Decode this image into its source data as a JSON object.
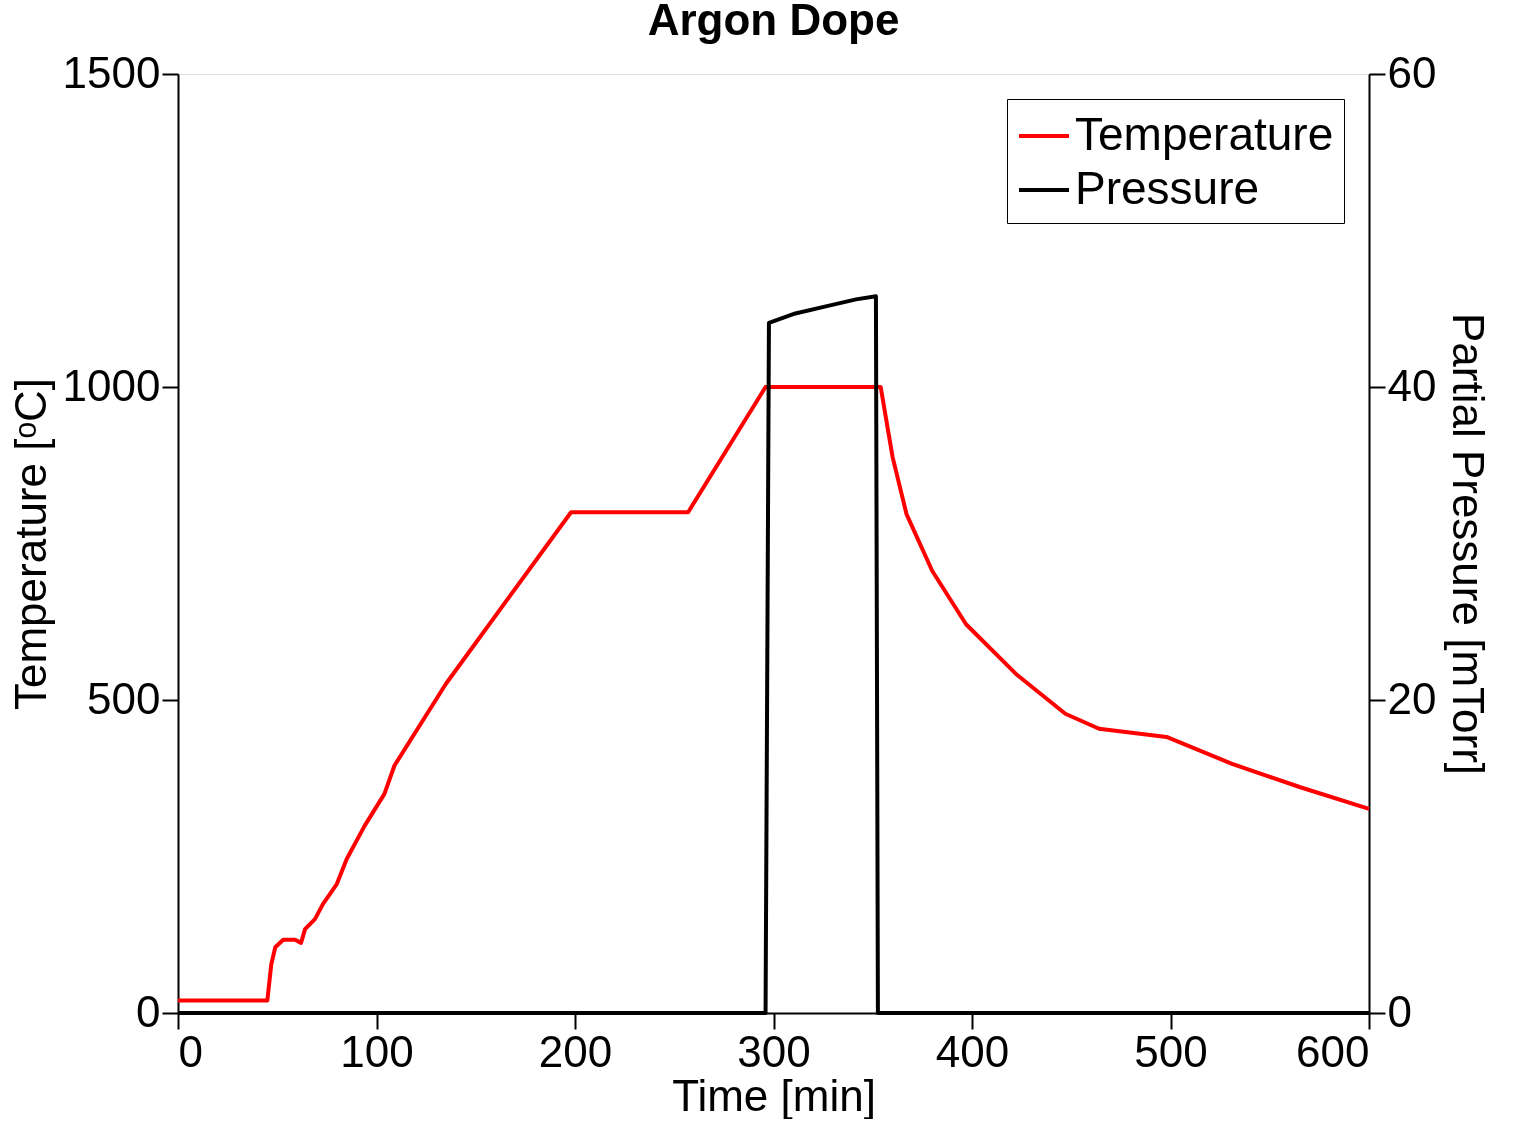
{
  "chart_data": {
    "type": "line",
    "title": "Argon Dope",
    "xlabel": "Time [min]",
    "ylabel": "Temperature [ᵒC]",
    "y2label": "Partial Pressure [mTorr]",
    "xlim": [
      0,
      600
    ],
    "xticks": [
      0,
      100,
      200,
      300,
      400,
      500,
      600
    ],
    "ylim": [
      0,
      1500
    ],
    "yticks": [
      0,
      500,
      1000,
      1500
    ],
    "y2lim": [
      0,
      60
    ],
    "y2ticks": [
      0,
      20,
      40,
      60
    ],
    "legend": "top right",
    "grid": false,
    "line_style": "solid",
    "marker": "none",
    "series": [
      {
        "name": "Temperature",
        "color": "#ff0000",
        "x": [
          0,
          45,
          47,
          49,
          53,
          59,
          62,
          64,
          69,
          73,
          80,
          85,
          94,
          104,
          109,
          135,
          198,
          257,
          296,
          353,
          354,
          360,
          367,
          380,
          397,
          422,
          447,
          464,
          498,
          531,
          565,
          600
        ],
        "values": [
          20,
          20,
          78,
          105,
          117,
          117,
          112,
          134,
          150,
          174,
          206,
          246,
          299,
          350,
          395,
          526,
          800,
          800,
          1000,
          1000,
          1000,
          888,
          797,
          706,
          621,
          542,
          478,
          454,
          441,
          398,
          361,
          326
        ]
      },
      {
        "name": "Pressure",
        "color": "#000000",
        "axis": "y2",
        "x": [
          0,
          296,
          297.7,
          311,
          328,
          341.6,
          351.6,
          352.6,
          600
        ],
        "values": [
          0,
          0,
          44.1,
          44.7,
          45.2,
          45.6,
          45.8,
          0,
          0
        ]
      }
    ]
  }
}
